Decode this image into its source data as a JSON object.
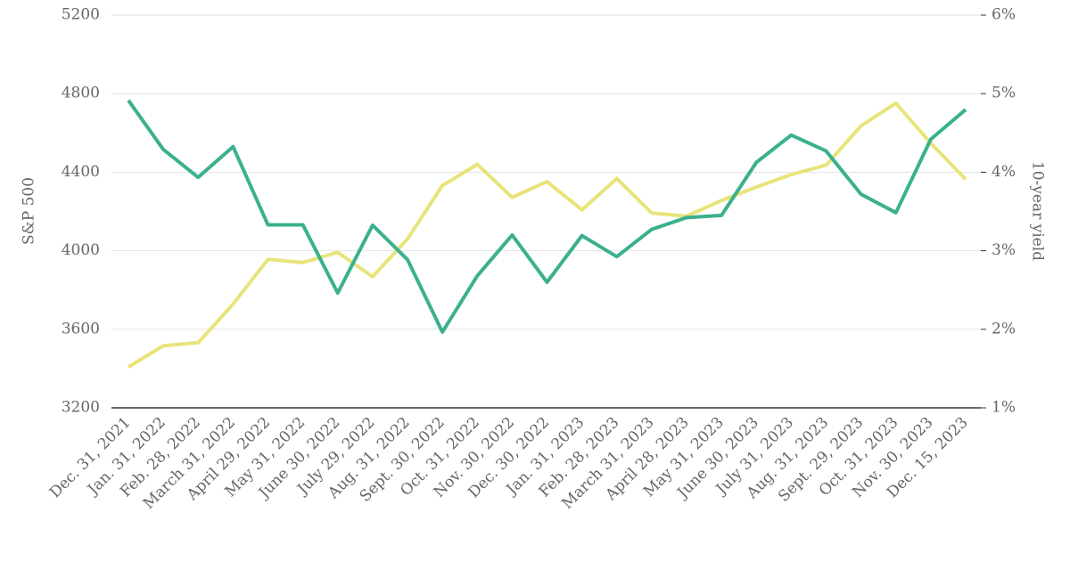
{
  "chart_data": {
    "type": "line",
    "categories": [
      "Dec. 31, 2021",
      "Jan. 31, 2022",
      "Feb. 28, 2022",
      "March 31, 2022",
      "April 29, 2022",
      "May 31, 2022",
      "June 30, 2022",
      "July 29, 2022",
      "Aug. 31, 2022",
      "Sept. 30, 2022",
      "Oct. 31, 2022",
      "Nov. 30, 2022",
      "Dec. 30, 2022",
      "Jan. 31, 2023",
      "Feb. 28, 2023",
      "March 31, 2023",
      "April 28, 2023",
      "May 31, 2023",
      "June 30, 2023",
      "July 31, 2023",
      "Aug. 31, 2023",
      "Sept. 29, 2023",
      "Oct. 31, 2023",
      "Nov. 30, 2023",
      "Dec. 15, 2023"
    ],
    "series": [
      {
        "name": "S&P 500",
        "color": "#3bb08f",
        "values": [
          4766,
          4516,
          4374,
          4530,
          4132,
          4132,
          3785,
          4130,
          3955,
          3586,
          3872,
          4080,
          3840,
          4077,
          3970,
          4109,
          4169,
          4180,
          4450,
          4589,
          4508,
          4288,
          4194,
          4568,
          4719
        ]
      },
      {
        "name": "10-year yield",
        "color": "#e8e47a",
        "axis": "y2",
        "values": [
          1.52,
          1.79,
          1.83,
          2.32,
          2.89,
          2.85,
          2.98,
          2.67,
          3.15,
          3.83,
          4.1,
          3.68,
          3.88,
          3.52,
          3.92,
          3.48,
          3.44,
          3.64,
          3.81,
          3.97,
          4.09,
          4.59,
          4.88,
          4.37,
          3.91
        ]
      }
    ],
    "ylabel": "S&P 500",
    "y2label": "10-year yield",
    "ylim": [
      3200,
      5200
    ],
    "yticks": [
      3200,
      3600,
      4000,
      4400,
      4800,
      5200
    ],
    "y2lim": [
      1,
      6
    ],
    "y2ticks": [
      {
        "value": 1,
        "label": "1%"
      },
      {
        "value": 2,
        "label": "2%"
      },
      {
        "value": 3,
        "label": "3%"
      },
      {
        "value": 4,
        "label": "4%"
      },
      {
        "value": 5,
        "label": "5%"
      },
      {
        "value": 6,
        "label": "6%"
      }
    ],
    "grid": true
  }
}
